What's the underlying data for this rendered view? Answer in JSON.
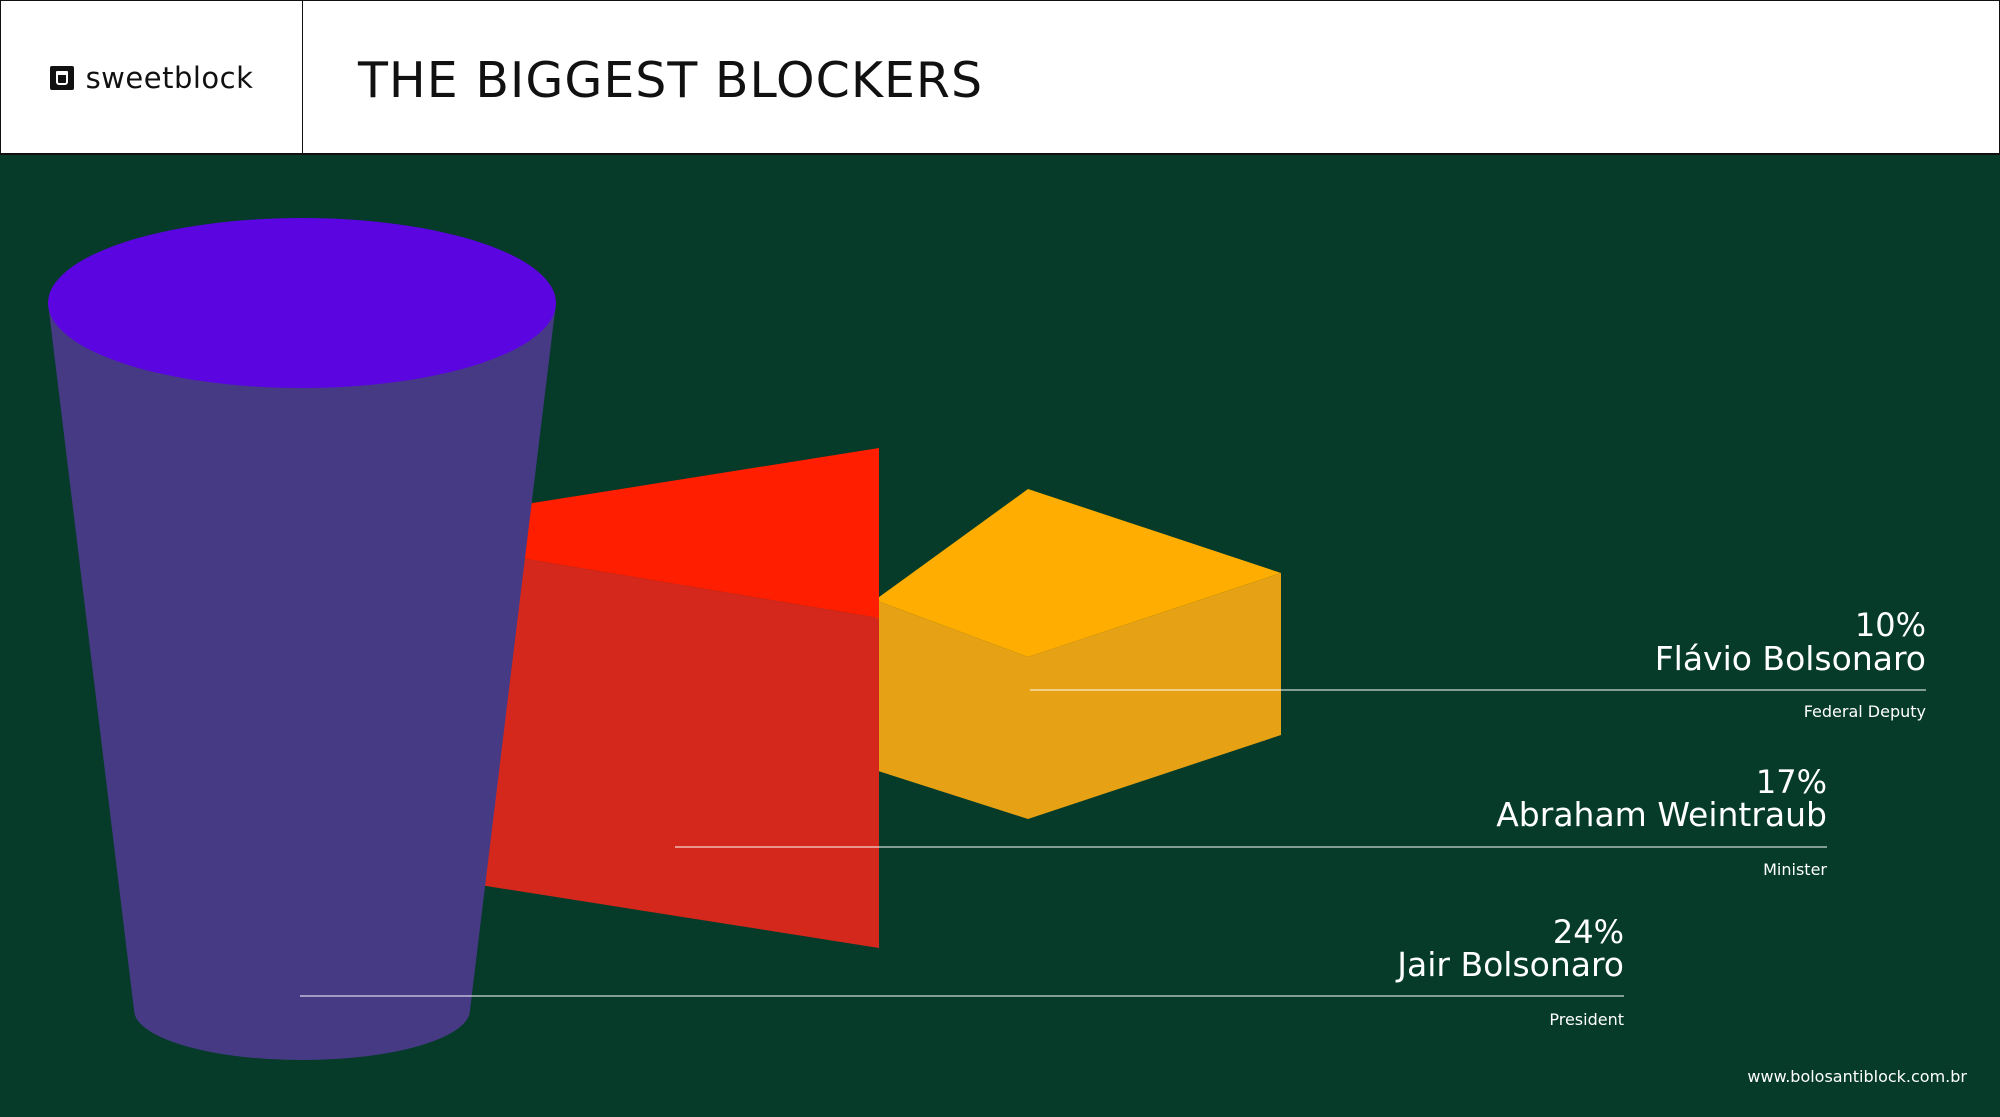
{
  "header": {
    "logo_text": "sweetblock",
    "title": "THE BIGGEST BLOCKERS"
  },
  "footer": {
    "url": "www.bolosantiblock.com.br"
  },
  "colors": {
    "background": "#053b28",
    "jair": "#5b05e0",
    "jair_side": "#463a85",
    "abraham_top": "#ff1e00",
    "abraham_side": "#d5281d",
    "flavio_top": "#ffad00",
    "flavio_side": "#e6a214"
  },
  "chart_data": {
    "type": "3d-shapes",
    "series": [
      {
        "value": "24%",
        "name": "Jair Bolsonaro",
        "role": "President",
        "shape": "cylinder"
      },
      {
        "value": "17%",
        "name": "Abraham Weintraub",
        "role": "Minister",
        "shape": "wedge"
      },
      {
        "value": "10%",
        "name": "Flávio Bolsonaro",
        "role": "Federal Deputy",
        "shape": "cube"
      }
    ]
  }
}
